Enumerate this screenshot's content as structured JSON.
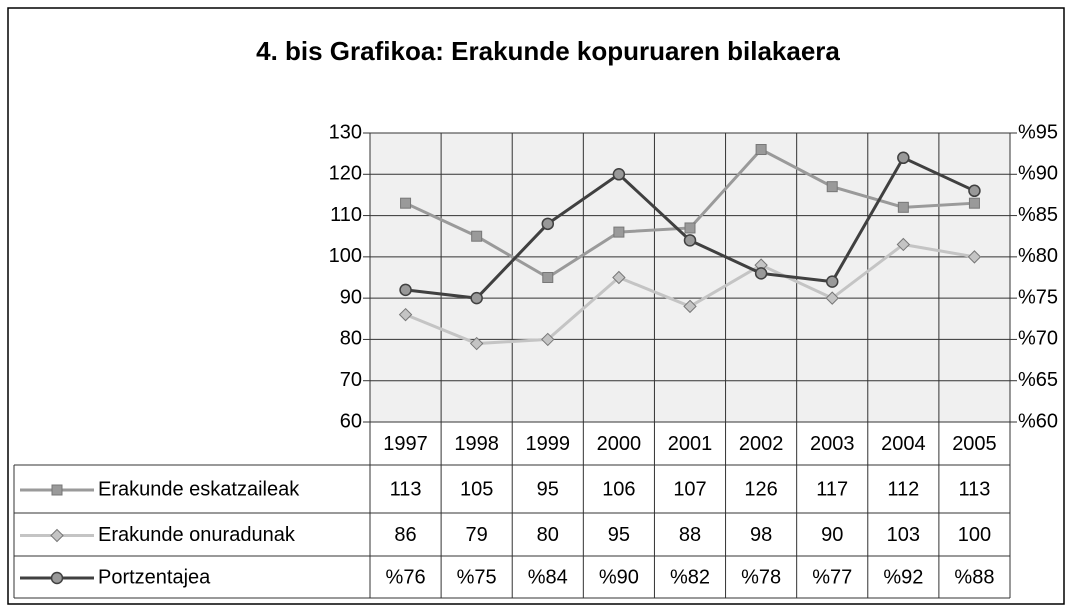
{
  "chart_data": {
    "type": "line",
    "title": "4. bis Grafikoa: Erakunde kopuruaren bilakaera",
    "categories": [
      "1997",
      "1998",
      "1999",
      "2000",
      "2001",
      "2002",
      "2003",
      "2004",
      "2005"
    ],
    "series": [
      {
        "name": "Erakunde eskatzaileak",
        "color": "#9a9a9a",
        "marker": "square",
        "values": [
          113,
          105,
          95,
          106,
          107,
          126,
          117,
          112,
          113
        ]
      },
      {
        "name": "Erakunde onuradunak",
        "color": "#c4c4c4",
        "marker": "diamond",
        "values": [
          86,
          79,
          80,
          95,
          88,
          98,
          90,
          103,
          100
        ]
      },
      {
        "name": "Portzentajea",
        "color": "#404040",
        "marker": "circle",
        "axis": "y2",
        "values": [
          76,
          75,
          84,
          90,
          82,
          78,
          77,
          92,
          88
        ],
        "value_labels": [
          "%76",
          "%75",
          "%84",
          "%90",
          "%82",
          "%78",
          "%77",
          "%92",
          "%88"
        ]
      }
    ],
    "ylim": [
      60,
      130
    ],
    "yticks": [
      60,
      70,
      80,
      90,
      100,
      110,
      120,
      130
    ],
    "y2lim": [
      60,
      95
    ],
    "y2ticks": [
      {
        "value": 60,
        "label": "%60"
      },
      {
        "value": 65,
        "label": "%65"
      },
      {
        "value": 70,
        "label": "%70"
      },
      {
        "value": 75,
        "label": "%75"
      },
      {
        "value": 80,
        "label": "%80"
      },
      {
        "value": 85,
        "label": "%85"
      },
      {
        "value": 90,
        "label": "%90"
      },
      {
        "value": 95,
        "label": "%95"
      }
    ],
    "grid": true,
    "data_table": true
  }
}
